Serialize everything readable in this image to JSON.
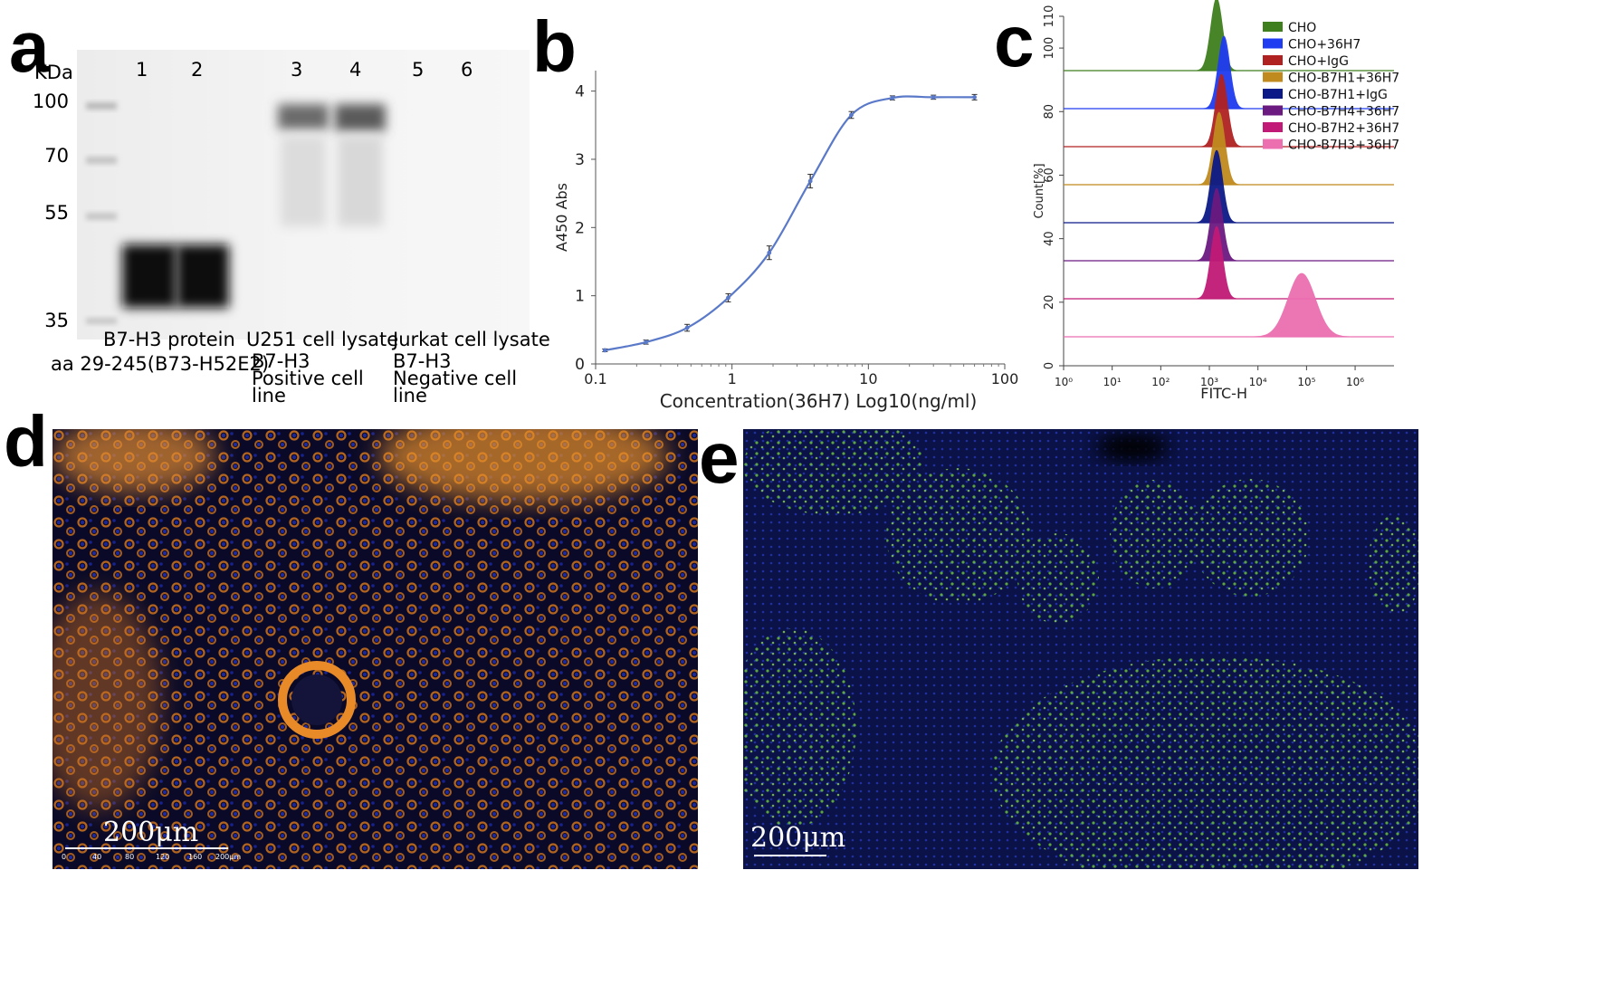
{
  "panels": {
    "a": {
      "letter": "a",
      "kda_label": "KDa",
      "mw_markers": [
        "100",
        "70",
        "55",
        "35"
      ],
      "lane_numbers": [
        "1",
        "2",
        "3",
        "4",
        "5",
        "6"
      ],
      "groups": [
        {
          "title": "B7-H3 protein",
          "subtitle": "aa 29-245(B73-H52E2)"
        },
        {
          "title": "U251 cell lysate",
          "subtitle": "B7-H3 Positive cell line"
        },
        {
          "title": "Jurkat cell lysate",
          "subtitle": "B7-H3 Negative cell line"
        }
      ]
    },
    "b": {
      "letter": "b"
    },
    "c": {
      "letter": "c"
    },
    "d": {
      "letter": "d",
      "scale_label": "200μm",
      "scale_ticks": [
        "0",
        "40",
        "80",
        "120",
        "160",
        "200μm"
      ]
    },
    "e": {
      "letter": "e",
      "scale_label": "200μm"
    }
  },
  "chart_data": [
    {
      "type": "line",
      "panel": "b",
      "xlabel": "Concentration(36H7)   Log10(ng/ml)",
      "ylabel": "A450 Abs",
      "x_scale": "log",
      "x_ticks": [
        "0.1",
        "1",
        "10",
        "100"
      ],
      "y_ticks": [
        "0",
        "1",
        "2",
        "3",
        "4"
      ],
      "xlim": [
        0.1,
        100
      ],
      "ylim": [
        0,
        4.3
      ],
      "series": [
        {
          "x": [
            0.117,
            0.234,
            0.469,
            0.938,
            1.875,
            3.75,
            7.5,
            15,
            30,
            60
          ],
          "y": [
            0.2,
            0.32,
            0.53,
            0.97,
            1.63,
            2.68,
            3.65,
            3.9,
            3.91,
            3.91
          ],
          "err": [
            0.02,
            0.03,
            0.05,
            0.06,
            0.1,
            0.1,
            0.05,
            0.03,
            0.03,
            0.04
          ]
        }
      ],
      "line_color": "#5a79c8"
    },
    {
      "type": "area",
      "panel": "c",
      "xlabel": "FITC-H",
      "ylabel": "Count[%]",
      "x_scale": "log",
      "x_ticks": [
        "10⁰",
        "10¹",
        "10²",
        "10³",
        "10⁴",
        "10⁵",
        "10⁶"
      ],
      "y_ticks": [
        "0",
        "20",
        "40",
        "60",
        "80",
        "100",
        "110"
      ],
      "legend_position": "top-right",
      "series": [
        {
          "name": "CHO",
          "color": "#3f7f1e",
          "peak_log": 3.15
        },
        {
          "name": "CHO+36H7",
          "color": "#1f3cf0",
          "peak_log": 3.3
        },
        {
          "name": "CHO+IgG",
          "color": "#b02222",
          "peak_log": 3.25
        },
        {
          "name": "CHO-B7H1+36H7",
          "color": "#c08a1e",
          "peak_log": 3.2
        },
        {
          "name": "CHO-B7H1+IgG",
          "color": "#0b1a86",
          "peak_log": 3.15
        },
        {
          "name": "CHO-B7H4+36H7",
          "color": "#6b1a80",
          "peak_log": 3.15
        },
        {
          "name": "CHO-B7H2+36H7",
          "color": "#c01a76",
          "peak_log": 3.15
        },
        {
          "name": "CHO-B7H3+36H7",
          "color": "#ec6fb0",
          "peak_log": 4.9
        }
      ]
    }
  ]
}
